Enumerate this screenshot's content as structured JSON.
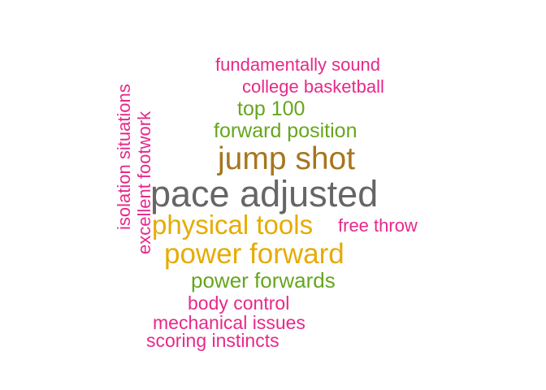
{
  "words": [
    {
      "text": "fundamentally sound",
      "color": "#e7298a"
    },
    {
      "text": "college basketball",
      "color": "#e7298a"
    },
    {
      "text": "top 100",
      "color": "#66a61e"
    },
    {
      "text": "forward position",
      "color": "#66a61e"
    },
    {
      "text": "jump shot",
      "color": "#a6761d"
    },
    {
      "text": "pace adjusted",
      "color": "#666666"
    },
    {
      "text": "physical tools",
      "color": "#e6ab02"
    },
    {
      "text": "free throw",
      "color": "#e7298a"
    },
    {
      "text": "power forward",
      "color": "#e6ab02"
    },
    {
      "text": "power forwards",
      "color": "#66a61e"
    },
    {
      "text": "body control",
      "color": "#e7298a"
    },
    {
      "text": "mechanical issues",
      "color": "#e7298a"
    },
    {
      "text": "scoring instincts",
      "color": "#e7298a"
    },
    {
      "text": "isolation situations",
      "color": "#e7298a"
    },
    {
      "text": "excellent footwork",
      "color": "#e7298a"
    }
  ]
}
